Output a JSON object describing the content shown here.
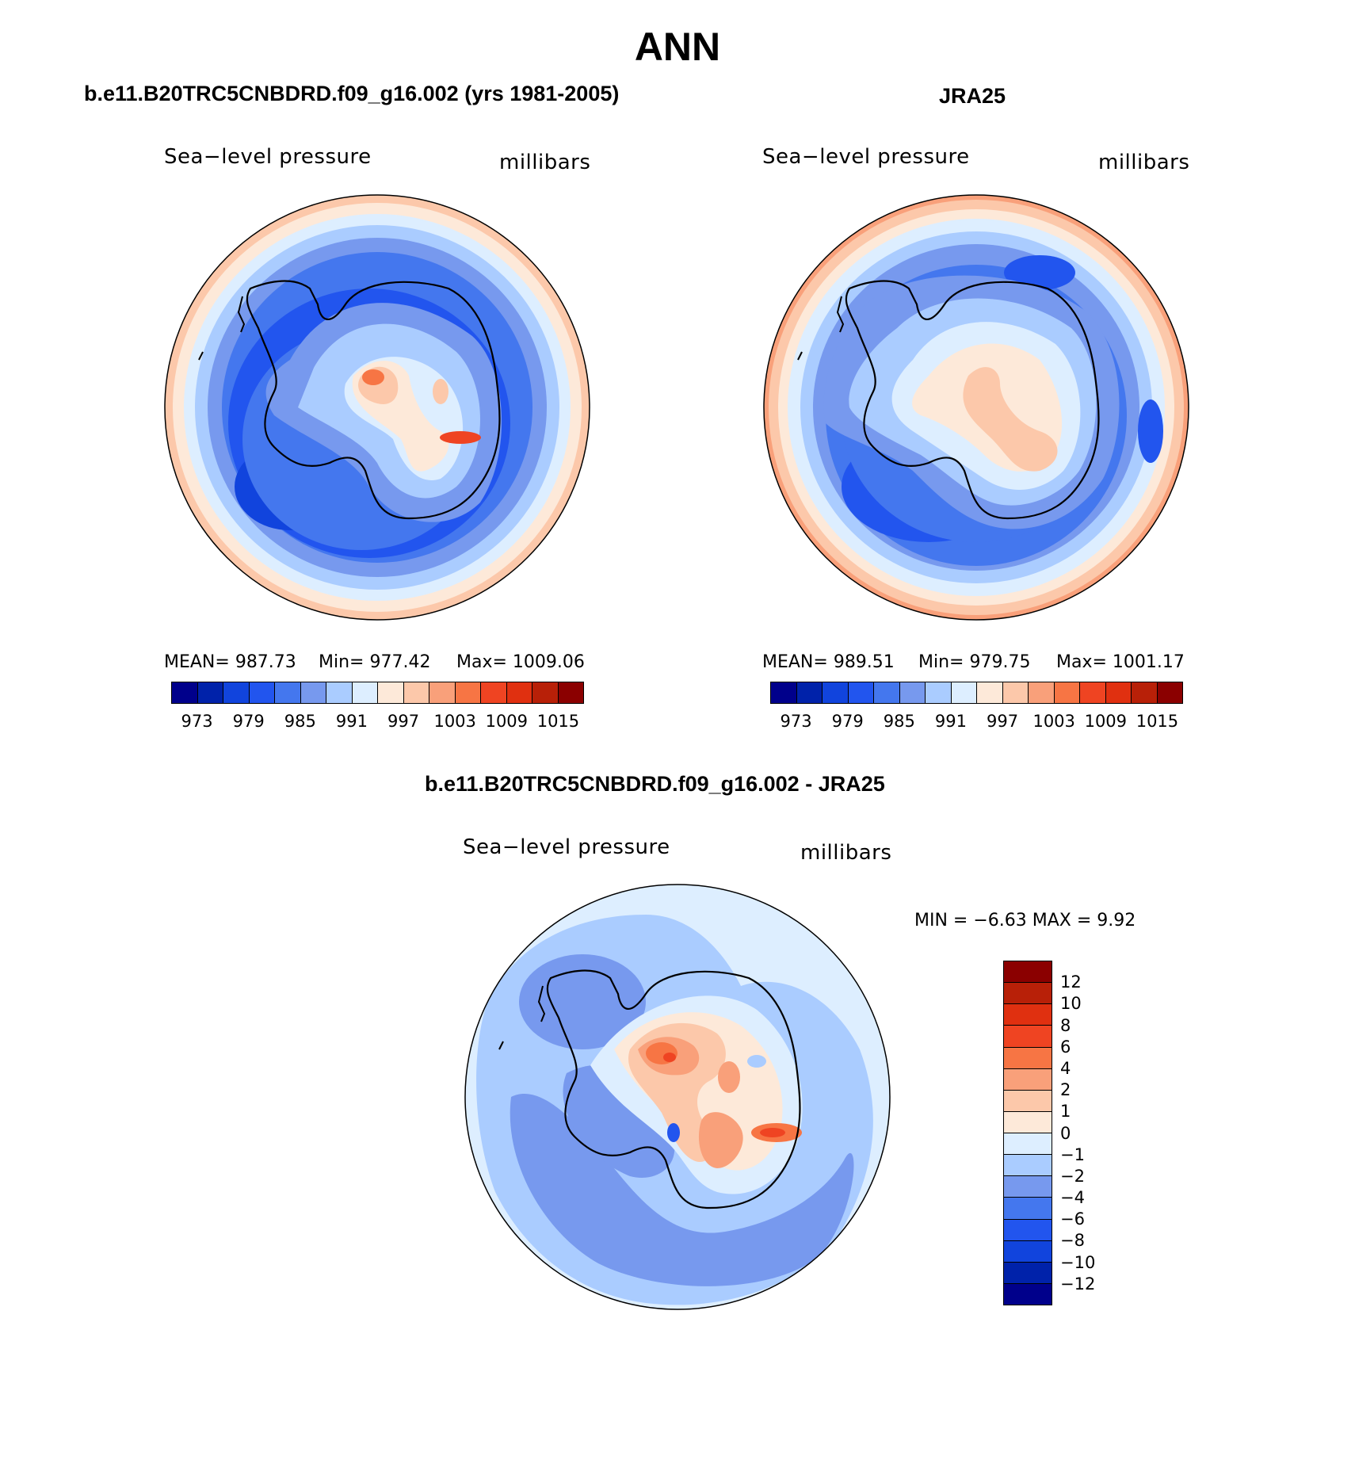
{
  "title": "ANN",
  "panels": [
    {
      "heading": "b.e11.B20TRC5CNBDRD.f09_g16.002 (yrs 1981-2005)",
      "field": "Sea−level pressure",
      "units": "millibars",
      "stats": {
        "mean": "MEAN=  987.73",
        "min": "Min=  977.42",
        "max": "Max=  1009.06"
      },
      "colorbar_ticks": [
        "973",
        "979",
        "985",
        "991",
        "997",
        "1003",
        "1009",
        "1015"
      ]
    },
    {
      "heading": "JRA25",
      "field": "Sea−level pressure",
      "units": "millibars",
      "stats": {
        "mean": "MEAN=  989.51",
        "min": "Min=  979.75",
        "max": "Max=  1001.17"
      },
      "colorbar_ticks": [
        "973",
        "979",
        "985",
        "991",
        "997",
        "1003",
        "1009",
        "1015"
      ]
    },
    {
      "heading": "b.e11.B20TRC5CNBDRD.f09_g16.002 - JRA25",
      "field": "Sea−level pressure",
      "units": "millibars",
      "stats": {
        "minmax": "MIN =   −6.63  MAX =     9.92"
      },
      "colorbar_ticks": [
        "12",
        "10",
        "8",
        "6",
        "4",
        "2",
        "1",
        "0",
        "−1",
        "−2",
        "−4",
        "−6",
        "−8",
        "−10",
        "−12"
      ]
    }
  ],
  "colors": {
    "abs_scale": [
      "#00008b",
      "#0022aa",
      "#1144dd",
      "#2255ee",
      "#4477ee",
      "#7799ee",
      "#aaccff",
      "#ddeeff",
      "#fde9d9",
      "#fcc8aa",
      "#f9a07a",
      "#f77544",
      "#ef4422",
      "#e03010",
      "#b82008",
      "#8b0000"
    ],
    "diff_scale": [
      "#8b0000",
      "#b82008",
      "#e03010",
      "#ef4422",
      "#f77544",
      "#f9a07a",
      "#fcc8aa",
      "#fde9d9",
      "#ddeeff",
      "#aaccff",
      "#7799ee",
      "#4477ee",
      "#2255ee",
      "#1144dd",
      "#0022aa",
      "#00008b"
    ]
  }
}
